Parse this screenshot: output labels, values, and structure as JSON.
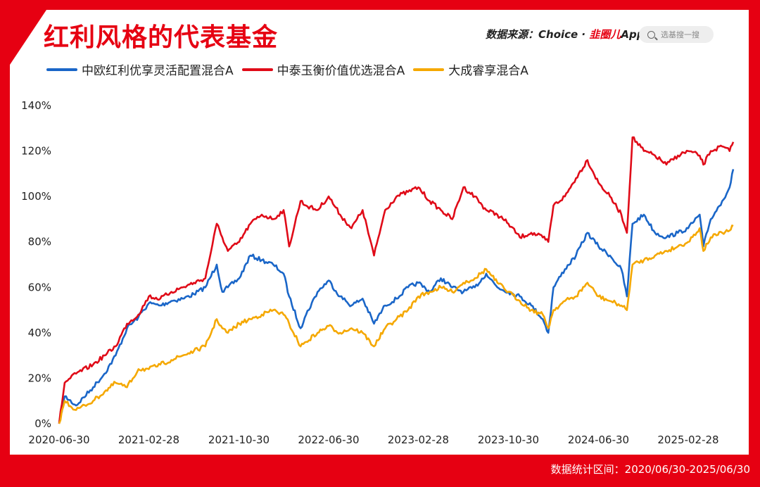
{
  "header": {
    "title": "红利风格的代表基金",
    "source_prefix": "数据来源：Choice · ",
    "source_brand": "韭圈儿",
    "source_app": "App",
    "search_placeholder": "选基搜一搜"
  },
  "footer": {
    "period": "数据统计区间：2020/06/30-2025/06/30"
  },
  "colors": {
    "frame": "#e60012",
    "blue": "#1a66c8",
    "red": "#e00b18",
    "yellow": "#f5a800"
  },
  "chart_data": {
    "type": "line",
    "x_tick_labels": [
      "2020-06-30",
      "2021-02-28",
      "2021-10-30",
      "2022-06-30",
      "2023-02-28",
      "2023-10-30",
      "2024-06-30",
      "2025-02-28"
    ],
    "y_tick_labels": [
      "0%",
      "20%",
      "40%",
      "60%",
      "80%",
      "100%",
      "120%",
      "140%"
    ],
    "ylim": [
      0,
      140
    ],
    "xlim": [
      "2020-06-30",
      "2025-06-30"
    ],
    "grid": false,
    "legend_position": "top-left",
    "series": [
      {
        "name": "中欧红利优享灵活配置混合A",
        "color": "#1a66c8",
        "points": [
          [
            "2020-06-30",
            0
          ],
          [
            "2020-07-15",
            12
          ],
          [
            "2020-08-15",
            8
          ],
          [
            "2020-09-30",
            16
          ],
          [
            "2020-10-31",
            22
          ],
          [
            "2020-11-30",
            30
          ],
          [
            "2020-12-31",
            42
          ],
          [
            "2021-01-31",
            47
          ],
          [
            "2021-02-28",
            53
          ],
          [
            "2021-03-31",
            52
          ],
          [
            "2021-04-30",
            54
          ],
          [
            "2021-05-31",
            55
          ],
          [
            "2021-06-30",
            57
          ],
          [
            "2021-07-31",
            60
          ],
          [
            "2021-08-31",
            70
          ],
          [
            "2021-09-15",
            58
          ],
          [
            "2021-09-30",
            60
          ],
          [
            "2021-10-31",
            64
          ],
          [
            "2021-11-30",
            74
          ],
          [
            "2021-12-31",
            72
          ],
          [
            "2022-01-31",
            70
          ],
          [
            "2022-02-28",
            66
          ],
          [
            "2022-03-15",
            56
          ],
          [
            "2022-04-15",
            42
          ],
          [
            "2022-04-30",
            48
          ],
          [
            "2022-05-31",
            58
          ],
          [
            "2022-06-30",
            63
          ],
          [
            "2022-07-31",
            56
          ],
          [
            "2022-08-31",
            52
          ],
          [
            "2022-09-30",
            55
          ],
          [
            "2022-10-31",
            44
          ],
          [
            "2022-11-30",
            52
          ],
          [
            "2022-12-31",
            55
          ],
          [
            "2023-01-31",
            60
          ],
          [
            "2023-02-28",
            62
          ],
          [
            "2023-03-31",
            58
          ],
          [
            "2023-04-30",
            64
          ],
          [
            "2023-05-31",
            60
          ],
          [
            "2023-06-30",
            58
          ],
          [
            "2023-07-31",
            60
          ],
          [
            "2023-08-31",
            66
          ],
          [
            "2023-09-30",
            60
          ],
          [
            "2023-10-30",
            58
          ],
          [
            "2023-11-30",
            56
          ],
          [
            "2023-12-31",
            52
          ],
          [
            "2024-01-31",
            46
          ],
          [
            "2024-02-15",
            40
          ],
          [
            "2024-02-29",
            60
          ],
          [
            "2024-03-31",
            68
          ],
          [
            "2024-04-30",
            74
          ],
          [
            "2024-05-31",
            84
          ],
          [
            "2024-06-30",
            78
          ],
          [
            "2024-07-31",
            74
          ],
          [
            "2024-08-31",
            68
          ],
          [
            "2024-09-15",
            56
          ],
          [
            "2024-09-30",
            88
          ],
          [
            "2024-10-31",
            92
          ],
          [
            "2024-11-30",
            84
          ],
          [
            "2024-12-31",
            82
          ],
          [
            "2025-01-31",
            84
          ],
          [
            "2025-02-28",
            86
          ],
          [
            "2025-03-31",
            92
          ],
          [
            "2025-04-10",
            78
          ],
          [
            "2025-04-30",
            90
          ],
          [
            "2025-05-31",
            98
          ],
          [
            "2025-06-20",
            104
          ],
          [
            "2025-06-30",
            112
          ]
        ]
      },
      {
        "name": "中泰玉衡价值优选混合A",
        "color": "#e00b18",
        "points": [
          [
            "2020-06-30",
            0
          ],
          [
            "2020-07-15",
            18
          ],
          [
            "2020-08-15",
            22
          ],
          [
            "2020-09-30",
            26
          ],
          [
            "2020-10-31",
            30
          ],
          [
            "2020-11-30",
            34
          ],
          [
            "2020-12-31",
            44
          ],
          [
            "2021-01-31",
            48
          ],
          [
            "2021-02-28",
            56
          ],
          [
            "2021-03-31",
            55
          ],
          [
            "2021-04-30",
            58
          ],
          [
            "2021-05-31",
            60
          ],
          [
            "2021-06-30",
            62
          ],
          [
            "2021-07-31",
            64
          ],
          [
            "2021-08-31",
            88
          ],
          [
            "2021-09-15",
            82
          ],
          [
            "2021-09-30",
            76
          ],
          [
            "2021-10-31",
            80
          ],
          [
            "2021-11-30",
            88
          ],
          [
            "2021-12-31",
            92
          ],
          [
            "2022-01-31",
            90
          ],
          [
            "2022-02-28",
            94
          ],
          [
            "2022-03-15",
            78
          ],
          [
            "2022-04-15",
            98
          ],
          [
            "2022-04-30",
            96
          ],
          [
            "2022-05-31",
            94
          ],
          [
            "2022-06-30",
            100
          ],
          [
            "2022-07-31",
            92
          ],
          [
            "2022-08-31",
            86
          ],
          [
            "2022-09-30",
            94
          ],
          [
            "2022-10-31",
            74
          ],
          [
            "2022-11-30",
            94
          ],
          [
            "2022-12-31",
            100
          ],
          [
            "2023-01-31",
            102
          ],
          [
            "2023-02-28",
            104
          ],
          [
            "2023-03-31",
            98
          ],
          [
            "2023-04-30",
            94
          ],
          [
            "2023-05-31",
            90
          ],
          [
            "2023-06-30",
            104
          ],
          [
            "2023-07-31",
            100
          ],
          [
            "2023-08-31",
            94
          ],
          [
            "2023-09-30",
            92
          ],
          [
            "2023-10-30",
            88
          ],
          [
            "2023-11-30",
            82
          ],
          [
            "2023-12-31",
            84
          ],
          [
            "2024-01-31",
            82
          ],
          [
            "2024-02-15",
            80
          ],
          [
            "2024-02-29",
            96
          ],
          [
            "2024-03-31",
            100
          ],
          [
            "2024-04-30",
            108
          ],
          [
            "2024-05-31",
            116
          ],
          [
            "2024-06-30",
            106
          ],
          [
            "2024-07-31",
            100
          ],
          [
            "2024-08-31",
            92
          ],
          [
            "2024-09-15",
            84
          ],
          [
            "2024-09-30",
            126
          ],
          [
            "2024-10-31",
            120
          ],
          [
            "2024-11-30",
            118
          ],
          [
            "2024-12-31",
            114
          ],
          [
            "2025-01-31",
            118
          ],
          [
            "2025-02-28",
            120
          ],
          [
            "2025-03-31",
            118
          ],
          [
            "2025-04-10",
            114
          ],
          [
            "2025-04-30",
            120
          ],
          [
            "2025-05-31",
            122
          ],
          [
            "2025-06-20",
            120
          ],
          [
            "2025-06-30",
            124
          ]
        ]
      },
      {
        "name": "大成睿享混合A",
        "color": "#f5a800",
        "points": [
          [
            "2020-06-30",
            0
          ],
          [
            "2020-07-15",
            10
          ],
          [
            "2020-08-15",
            6
          ],
          [
            "2020-09-30",
            10
          ],
          [
            "2020-10-31",
            14
          ],
          [
            "2020-11-30",
            18
          ],
          [
            "2020-12-31",
            16
          ],
          [
            "2021-01-31",
            24
          ],
          [
            "2021-02-28",
            24
          ],
          [
            "2021-03-31",
            26
          ],
          [
            "2021-04-30",
            28
          ],
          [
            "2021-05-31",
            30
          ],
          [
            "2021-06-30",
            32
          ],
          [
            "2021-07-31",
            34
          ],
          [
            "2021-08-31",
            46
          ],
          [
            "2021-09-15",
            42
          ],
          [
            "2021-09-30",
            40
          ],
          [
            "2021-10-31",
            44
          ],
          [
            "2021-11-30",
            46
          ],
          [
            "2021-12-31",
            48
          ],
          [
            "2022-01-31",
            50
          ],
          [
            "2022-02-28",
            48
          ],
          [
            "2022-03-15",
            44
          ],
          [
            "2022-04-15",
            34
          ],
          [
            "2022-04-30",
            36
          ],
          [
            "2022-05-31",
            40
          ],
          [
            "2022-06-30",
            43
          ],
          [
            "2022-07-31",
            40
          ],
          [
            "2022-08-31",
            42
          ],
          [
            "2022-09-30",
            40
          ],
          [
            "2022-10-31",
            34
          ],
          [
            "2022-11-30",
            42
          ],
          [
            "2022-12-31",
            46
          ],
          [
            "2023-01-31",
            50
          ],
          [
            "2023-02-28",
            56
          ],
          [
            "2023-03-31",
            58
          ],
          [
            "2023-04-30",
            60
          ],
          [
            "2023-05-31",
            58
          ],
          [
            "2023-06-30",
            62
          ],
          [
            "2023-07-31",
            64
          ],
          [
            "2023-08-31",
            68
          ],
          [
            "2023-09-30",
            62
          ],
          [
            "2023-10-30",
            58
          ],
          [
            "2023-11-30",
            54
          ],
          [
            "2023-12-31",
            50
          ],
          [
            "2024-01-31",
            48
          ],
          [
            "2024-02-15",
            42
          ],
          [
            "2024-02-29",
            50
          ],
          [
            "2024-03-31",
            54
          ],
          [
            "2024-04-30",
            56
          ],
          [
            "2024-05-31",
            62
          ],
          [
            "2024-06-30",
            56
          ],
          [
            "2024-07-31",
            54
          ],
          [
            "2024-08-31",
            52
          ],
          [
            "2024-09-15",
            50
          ],
          [
            "2024-09-30",
            70
          ],
          [
            "2024-10-31",
            72
          ],
          [
            "2024-11-30",
            74
          ],
          [
            "2024-12-31",
            76
          ],
          [
            "2025-01-31",
            78
          ],
          [
            "2025-02-28",
            80
          ],
          [
            "2025-03-31",
            86
          ],
          [
            "2025-04-10",
            76
          ],
          [
            "2025-04-30",
            82
          ],
          [
            "2025-05-31",
            84
          ],
          [
            "2025-06-20",
            85
          ],
          [
            "2025-06-30",
            87
          ]
        ]
      }
    ]
  }
}
